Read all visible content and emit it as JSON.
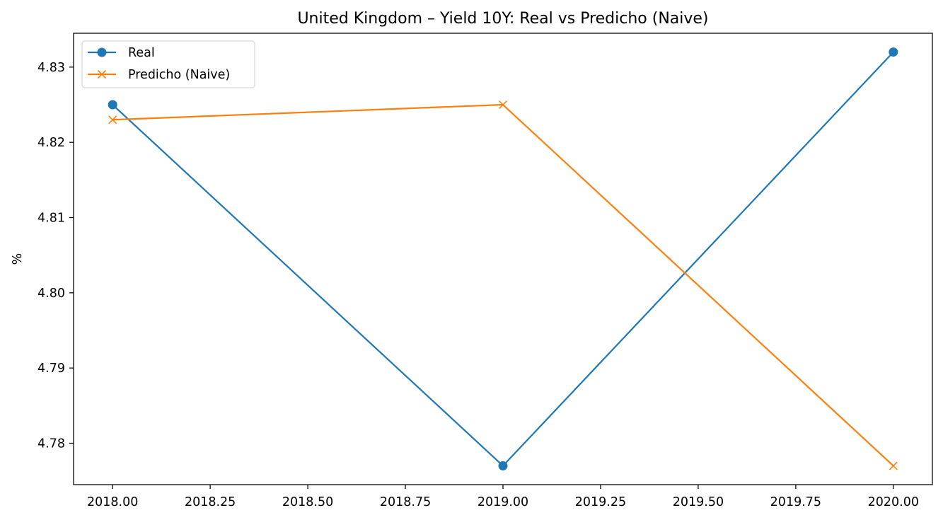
{
  "chart_data": {
    "type": "line",
    "title": "United Kingdom – Yield 10Y: Real vs Predicho (Naive)",
    "xlabel": "",
    "ylabel": "%",
    "x": [
      2018,
      2019,
      2020
    ],
    "xlim": [
      2017.9,
      2020.1
    ],
    "ylim": [
      4.7745,
      4.8345
    ],
    "xticks": [
      2018.0,
      2018.25,
      2018.5,
      2018.75,
      2019.0,
      2019.25,
      2019.5,
      2019.75,
      2020.0
    ],
    "xtick_labels": [
      "2018.00",
      "2018.25",
      "2018.50",
      "2018.75",
      "2019.00",
      "2019.25",
      "2019.50",
      "2019.75",
      "2020.00"
    ],
    "yticks": [
      4.78,
      4.79,
      4.8,
      4.81,
      4.82,
      4.83
    ],
    "ytick_labels": [
      "4.78",
      "4.79",
      "4.80",
      "4.81",
      "4.82",
      "4.83"
    ],
    "grid": false,
    "legend_position": "top-left",
    "series": [
      {
        "name": "Real",
        "values": [
          4.825,
          4.777,
          4.832
        ],
        "color": "#1f77b4",
        "marker": "circle"
      },
      {
        "name": "Predicho (Naive)",
        "values": [
          4.823,
          4.825,
          4.777
        ],
        "color": "#ff7f0e",
        "marker": "x"
      }
    ]
  }
}
